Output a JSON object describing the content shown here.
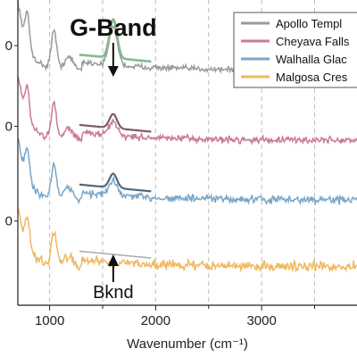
{
  "chart_data": {
    "type": "line",
    "title": "",
    "xlabel": "Wavenumber (cm⁻¹)",
    "ylabel": "",
    "xlim": [
      700,
      3900
    ],
    "x_ticks": [
      1000,
      2000,
      3000
    ],
    "x_tick_labels": [
      "1000",
      "2000",
      "3000"
    ],
    "y_ticks_partial": [
      "0",
      "0",
      "0"
    ],
    "grid": "vertical dashed at every 500 cm⁻¹",
    "legend_position": "top-right",
    "series": [
      {
        "name": "Apollo Templ",
        "color": "#9a9a9a",
        "offset": 3.0,
        "peak": 0.55,
        "noise": 0.06,
        "fit_color": "#86b891",
        "fit_width": 2.6
      },
      {
        "name": "Cheyava Falls",
        "color": "#c97b93",
        "offset": 2.0,
        "peak": 0.2,
        "noise": 0.07,
        "fit_color": "#7f5a66",
        "fit_width": 2.2
      },
      {
        "name": "Walhalla Glac",
        "color": "#7aa6c7",
        "offset": 1.15,
        "peak": 0.2,
        "noise": 0.08,
        "fit_color": "#4d6a80",
        "fit_width": 2.2
      },
      {
        "name": "Malgosa Cres",
        "color": "#f0b861",
        "offset": 0.2,
        "peak": 0.0,
        "noise": 0.1,
        "fit_color": "#aab0b5",
        "fit_width": 1.6
      }
    ],
    "fit_range": [
      1280,
      1960
    ],
    "peak_center": 1600,
    "annotations": [
      {
        "text": "G-Band",
        "x": 1600,
        "kind": "arrow-down"
      },
      {
        "text": "Bknd",
        "x": 1600,
        "kind": "arrow-up"
      }
    ]
  }
}
